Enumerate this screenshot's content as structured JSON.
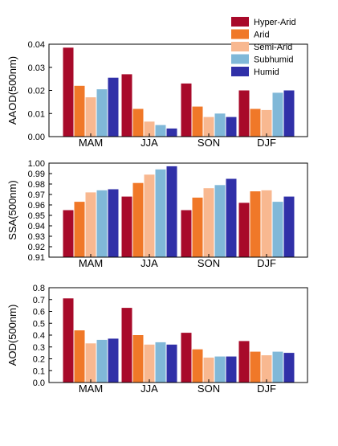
{
  "legend": {
    "position": "top-right",
    "entries": [
      {
        "name": "Hyper-Arid",
        "color": "#a80a2a"
      },
      {
        "name": "Arid",
        "color": "#f07828"
      },
      {
        "name": "Semi-Arid",
        "color": "#f8b890"
      },
      {
        "name": "Subhumid",
        "color": "#80b8d8"
      },
      {
        "name": "Humid",
        "color": "#3030a8"
      }
    ]
  },
  "chart_data": [
    {
      "type": "bar",
      "ylabel": "AAOD(500nm)",
      "xlabel": "",
      "categories": [
        "MAM",
        "JJA",
        "SON",
        "DJF"
      ],
      "ylim": [
        0,
        0.04
      ],
      "yticks": [
        "0.00",
        "0.01",
        "0.02",
        "0.03",
        "0.04"
      ],
      "grid": false,
      "series": [
        {
          "name": "Hyper-Arid",
          "values": [
            0.0385,
            0.027,
            0.023,
            0.02
          ]
        },
        {
          "name": "Arid",
          "values": [
            0.022,
            0.012,
            0.013,
            0.012
          ]
        },
        {
          "name": "Semi-Arid",
          "values": [
            0.017,
            0.0065,
            0.0085,
            0.0115
          ]
        },
        {
          "name": "Subhumid",
          "values": [
            0.0205,
            0.005,
            0.01,
            0.019
          ]
        },
        {
          "name": "Humid",
          "values": [
            0.0255,
            0.0035,
            0.0085,
            0.02
          ]
        }
      ]
    },
    {
      "type": "bar",
      "ylabel": "SSA(500nm)",
      "xlabel": "",
      "categories": [
        "MAM",
        "JJA",
        "SON",
        "DJF"
      ],
      "ylim": [
        0.91,
        1.0
      ],
      "yticks": [
        "0.91",
        "0.92",
        "0.93",
        "0.94",
        "0.95",
        "0.96",
        "0.97",
        "0.98",
        "0.99",
        "1.00"
      ],
      "grid": false,
      "series": [
        {
          "name": "Hyper-Arid",
          "values": [
            0.955,
            0.968,
            0.955,
            0.962
          ]
        },
        {
          "name": "Arid",
          "values": [
            0.963,
            0.981,
            0.967,
            0.973
          ]
        },
        {
          "name": "Semi-Arid",
          "values": [
            0.972,
            0.989,
            0.976,
            0.974
          ]
        },
        {
          "name": "Subhumid",
          "values": [
            0.974,
            0.994,
            0.979,
            0.963
          ]
        },
        {
          "name": "Humid",
          "values": [
            0.975,
            0.997,
            0.985,
            0.968
          ]
        }
      ]
    },
    {
      "type": "bar",
      "ylabel": "AOD(500nm)",
      "xlabel": "",
      "categories": [
        "MAM",
        "JJA",
        "SON",
        "DJF"
      ],
      "ylim": [
        0,
        0.8
      ],
      "yticks": [
        "0.0",
        "0.1",
        "0.2",
        "0.3",
        "0.4",
        "0.5",
        "0.6",
        "0.7",
        "0.8"
      ],
      "grid": false,
      "series": [
        {
          "name": "Hyper-Arid",
          "values": [
            0.71,
            0.63,
            0.42,
            0.35
          ]
        },
        {
          "name": "Arid",
          "values": [
            0.44,
            0.4,
            0.28,
            0.26
          ]
        },
        {
          "name": "Semi-Arid",
          "values": [
            0.33,
            0.32,
            0.21,
            0.23
          ]
        },
        {
          "name": "Subhumid",
          "values": [
            0.36,
            0.34,
            0.22,
            0.26
          ]
        },
        {
          "name": "Humid",
          "values": [
            0.37,
            0.32,
            0.22,
            0.25
          ]
        }
      ]
    }
  ]
}
